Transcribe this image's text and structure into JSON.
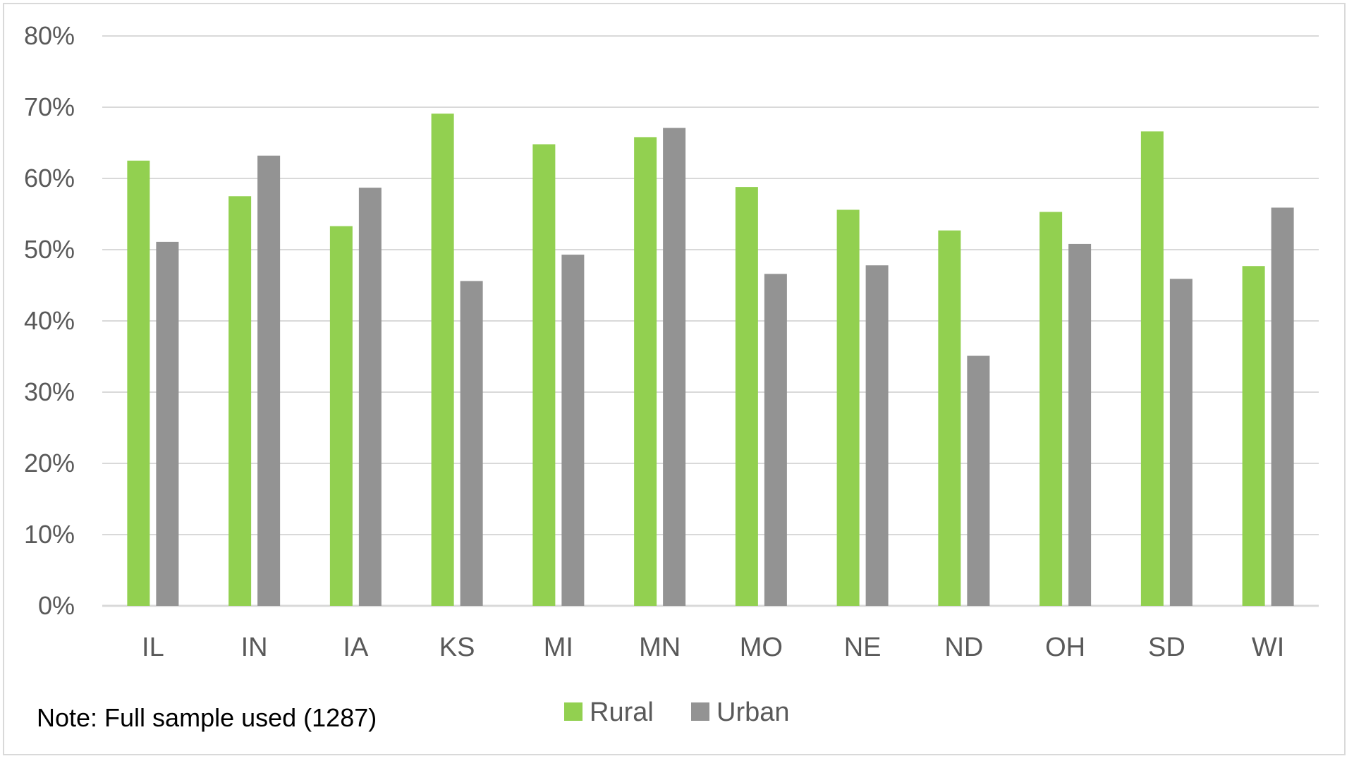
{
  "chart_data": {
    "type": "bar",
    "categories": [
      "IL",
      "IN",
      "IA",
      "KS",
      "MI",
      "MN",
      "MO",
      "NE",
      "ND",
      "OH",
      "SD",
      "WI"
    ],
    "series": [
      {
        "name": "Rural",
        "color": "#92d050",
        "values": [
          62.5,
          57.5,
          53.3,
          69.1,
          64.8,
          65.8,
          58.8,
          55.6,
          52.7,
          55.3,
          66.6,
          47.7
        ]
      },
      {
        "name": "Urban",
        "color": "#939393",
        "values": [
          51.1,
          63.2,
          58.7,
          45.6,
          49.3,
          67.1,
          46.6,
          47.8,
          35.1,
          50.8,
          45.9,
          55.9
        ]
      }
    ],
    "ylim": [
      0,
      80
    ],
    "yticks": [
      "0%",
      "10%",
      "20%",
      "30%",
      "40%",
      "50%",
      "60%",
      "70%",
      "80%"
    ],
    "grid": true,
    "legend_position": "bottom",
    "note": "Note: Full sample used (1287)"
  }
}
